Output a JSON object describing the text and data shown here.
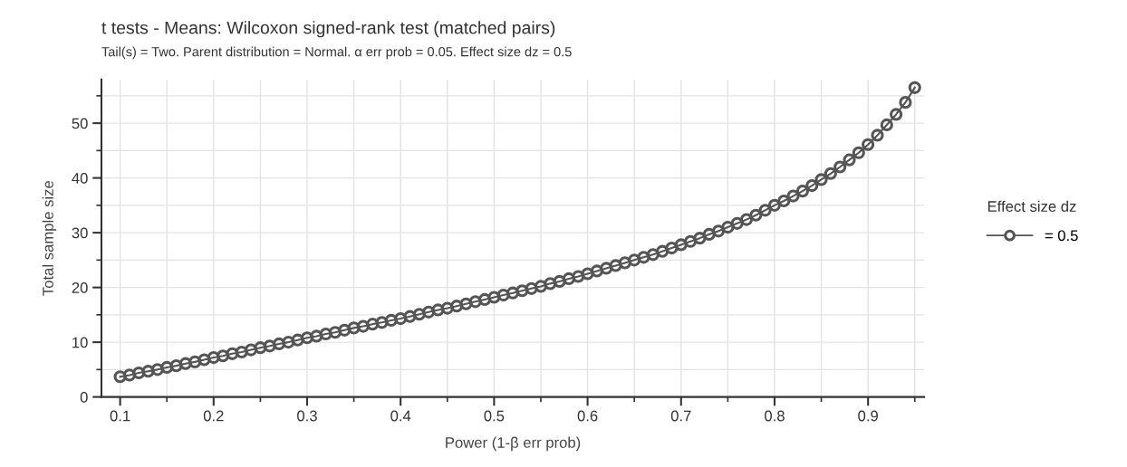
{
  "chart_data": {
    "type": "line",
    "title": "t tests - Means: Wilcoxon signed-rank test (matched pairs)",
    "subtitle": "Tail(s) = Two. Parent distribution = Normal. α err prob = 0.05. Effect size dz = 0.5",
    "xlabel": "Power (1-β err prob)",
    "ylabel": "Total sample size",
    "legend_title": "Effect size dz",
    "xlim": [
      0.08,
      0.96
    ],
    "ylim": [
      0,
      58
    ],
    "xticks": [
      0.1,
      0.2,
      0.3,
      0.4,
      0.5,
      0.6,
      0.7,
      0.8,
      0.9
    ],
    "yticks": [
      0,
      10,
      20,
      30,
      40,
      50
    ],
    "grid": true,
    "legend": "right",
    "marker": "circle",
    "line_style": "solid",
    "x": [
      0.1,
      0.11,
      0.12,
      0.13,
      0.14,
      0.15,
      0.16,
      0.17,
      0.18,
      0.19,
      0.2,
      0.21,
      0.22,
      0.23,
      0.24,
      0.25,
      0.26,
      0.27,
      0.28,
      0.29,
      0.3,
      0.31,
      0.32,
      0.33,
      0.34,
      0.35,
      0.36,
      0.37,
      0.38,
      0.39,
      0.4,
      0.41,
      0.42,
      0.43,
      0.44,
      0.45,
      0.46,
      0.47,
      0.48,
      0.49,
      0.5,
      0.51,
      0.52,
      0.53,
      0.54,
      0.55,
      0.56,
      0.57,
      0.58,
      0.59,
      0.6,
      0.61,
      0.62,
      0.63,
      0.64,
      0.65,
      0.66,
      0.67,
      0.68,
      0.69,
      0.7,
      0.71,
      0.72,
      0.73,
      0.74,
      0.75,
      0.76,
      0.77,
      0.78,
      0.79,
      0.8,
      0.81,
      0.82,
      0.83,
      0.84,
      0.85,
      0.86,
      0.87,
      0.88,
      0.89,
      0.9,
      0.91,
      0.92,
      0.93,
      0.94,
      0.95
    ],
    "series": [
      {
        "name": "= 0.5",
        "color": "#555555",
        "values": [
          3.7,
          4.0,
          4.4,
          4.7,
          5.0,
          5.4,
          5.7,
          6.1,
          6.4,
          6.8,
          7.2,
          7.5,
          7.9,
          8.2,
          8.6,
          9.0,
          9.3,
          9.7,
          10.0,
          10.4,
          10.8,
          11.1,
          11.5,
          11.8,
          12.2,
          12.6,
          12.9,
          13.3,
          13.6,
          14.0,
          14.3,
          14.7,
          15.1,
          15.5,
          15.9,
          16.2,
          16.6,
          17.0,
          17.4,
          17.8,
          18.2,
          18.6,
          19.0,
          19.4,
          19.8,
          20.2,
          20.7,
          21.1,
          21.6,
          22.0,
          22.5,
          23.0,
          23.5,
          24.0,
          24.5,
          25.0,
          25.5,
          26.0,
          26.6,
          27.2,
          27.8,
          28.4,
          29.0,
          29.7,
          30.3,
          31.0,
          31.7,
          32.4,
          33.2,
          34.1,
          35.0,
          35.8,
          36.7,
          37.6,
          38.6,
          39.7,
          40.8,
          42.0,
          43.3,
          44.6,
          46.1,
          47.8,
          49.7,
          51.6,
          53.8,
          56.5
        ]
      }
    ]
  }
}
